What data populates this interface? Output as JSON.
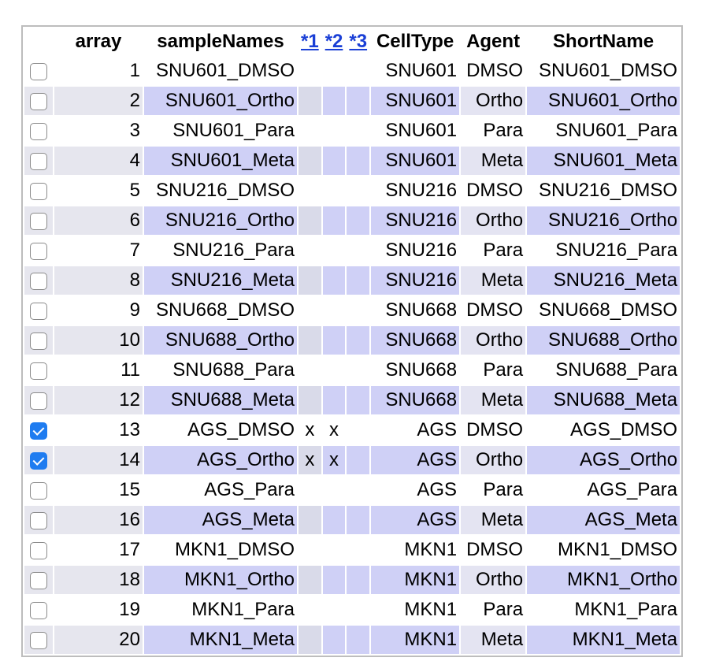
{
  "headers": {
    "array": "array",
    "sampleNames": "sampleNames",
    "star1": "*1",
    "star2": "*2",
    "star3": "*3",
    "cellType": "CellType",
    "agent": "Agent",
    "shortName": "ShortName"
  },
  "rows": [
    {
      "checked": false,
      "array": "1",
      "sample": "SNU601_DMSO",
      "s1": "",
      "s2": "",
      "s3": "",
      "cellType": "SNU601",
      "agent": "DMSO",
      "short": "SNU601_DMSO"
    },
    {
      "checked": false,
      "array": "2",
      "sample": "SNU601_Ortho",
      "s1": "",
      "s2": "",
      "s3": "",
      "cellType": "SNU601",
      "agent": "Ortho",
      "short": "SNU601_Ortho"
    },
    {
      "checked": false,
      "array": "3",
      "sample": "SNU601_Para",
      "s1": "",
      "s2": "",
      "s3": "",
      "cellType": "SNU601",
      "agent": "Para",
      "short": "SNU601_Para"
    },
    {
      "checked": false,
      "array": "4",
      "sample": "SNU601_Meta",
      "s1": "",
      "s2": "",
      "s3": "",
      "cellType": "SNU601",
      "agent": "Meta",
      "short": "SNU601_Meta"
    },
    {
      "checked": false,
      "array": "5",
      "sample": "SNU216_DMSO",
      "s1": "",
      "s2": "",
      "s3": "",
      "cellType": "SNU216",
      "agent": "DMSO",
      "short": "SNU216_DMSO"
    },
    {
      "checked": false,
      "array": "6",
      "sample": "SNU216_Ortho",
      "s1": "",
      "s2": "",
      "s3": "",
      "cellType": "SNU216",
      "agent": "Ortho",
      "short": "SNU216_Ortho"
    },
    {
      "checked": false,
      "array": "7",
      "sample": "SNU216_Para",
      "s1": "",
      "s2": "",
      "s3": "",
      "cellType": "SNU216",
      "agent": "Para",
      "short": "SNU216_Para"
    },
    {
      "checked": false,
      "array": "8",
      "sample": "SNU216_Meta",
      "s1": "",
      "s2": "",
      "s3": "",
      "cellType": "SNU216",
      "agent": "Meta",
      "short": "SNU216_Meta"
    },
    {
      "checked": false,
      "array": "9",
      "sample": "SNU668_DMSO",
      "s1": "",
      "s2": "",
      "s3": "",
      "cellType": "SNU668",
      "agent": "DMSO",
      "short": "SNU668_DMSO"
    },
    {
      "checked": false,
      "array": "10",
      "sample": "SNU688_Ortho",
      "s1": "",
      "s2": "",
      "s3": "",
      "cellType": "SNU668",
      "agent": "Ortho",
      "short": "SNU688_Ortho"
    },
    {
      "checked": false,
      "array": "11",
      "sample": "SNU688_Para",
      "s1": "",
      "s2": "",
      "s3": "",
      "cellType": "SNU668",
      "agent": "Para",
      "short": "SNU688_Para"
    },
    {
      "checked": false,
      "array": "12",
      "sample": "SNU688_Meta",
      "s1": "",
      "s2": "",
      "s3": "",
      "cellType": "SNU668",
      "agent": "Meta",
      "short": "SNU688_Meta"
    },
    {
      "checked": true,
      "array": "13",
      "sample": "AGS_DMSO",
      "s1": "x",
      "s2": "x",
      "s3": "",
      "cellType": "AGS",
      "agent": "DMSO",
      "short": "AGS_DMSO"
    },
    {
      "checked": true,
      "array": "14",
      "sample": "AGS_Ortho",
      "s1": "x",
      "s2": "x",
      "s3": "",
      "cellType": "AGS",
      "agent": "Ortho",
      "short": "AGS_Ortho"
    },
    {
      "checked": false,
      "array": "15",
      "sample": "AGS_Para",
      "s1": "",
      "s2": "",
      "s3": "",
      "cellType": "AGS",
      "agent": "Para",
      "short": "AGS_Para"
    },
    {
      "checked": false,
      "array": "16",
      "sample": "AGS_Meta",
      "s1": "",
      "s2": "",
      "s3": "",
      "cellType": "AGS",
      "agent": "Meta",
      "short": "AGS_Meta"
    },
    {
      "checked": false,
      "array": "17",
      "sample": "MKN1_DMSO",
      "s1": "",
      "s2": "",
      "s3": "",
      "cellType": "MKN1",
      "agent": "DMSO",
      "short": "MKN1_DMSO"
    },
    {
      "checked": false,
      "array": "18",
      "sample": "MKN1_Ortho",
      "s1": "",
      "s2": "",
      "s3": "",
      "cellType": "MKN1",
      "agent": "Ortho",
      "short": "MKN1_Ortho"
    },
    {
      "checked": false,
      "array": "19",
      "sample": "MKN1_Para",
      "s1": "",
      "s2": "",
      "s3": "",
      "cellType": "MKN1",
      "agent": "Para",
      "short": "MKN1_Para"
    },
    {
      "checked": false,
      "array": "20",
      "sample": "MKN1_Meta",
      "s1": "",
      "s2": "",
      "s3": "",
      "cellType": "MKN1",
      "agent": "Meta",
      "short": "MKN1_Meta"
    }
  ]
}
